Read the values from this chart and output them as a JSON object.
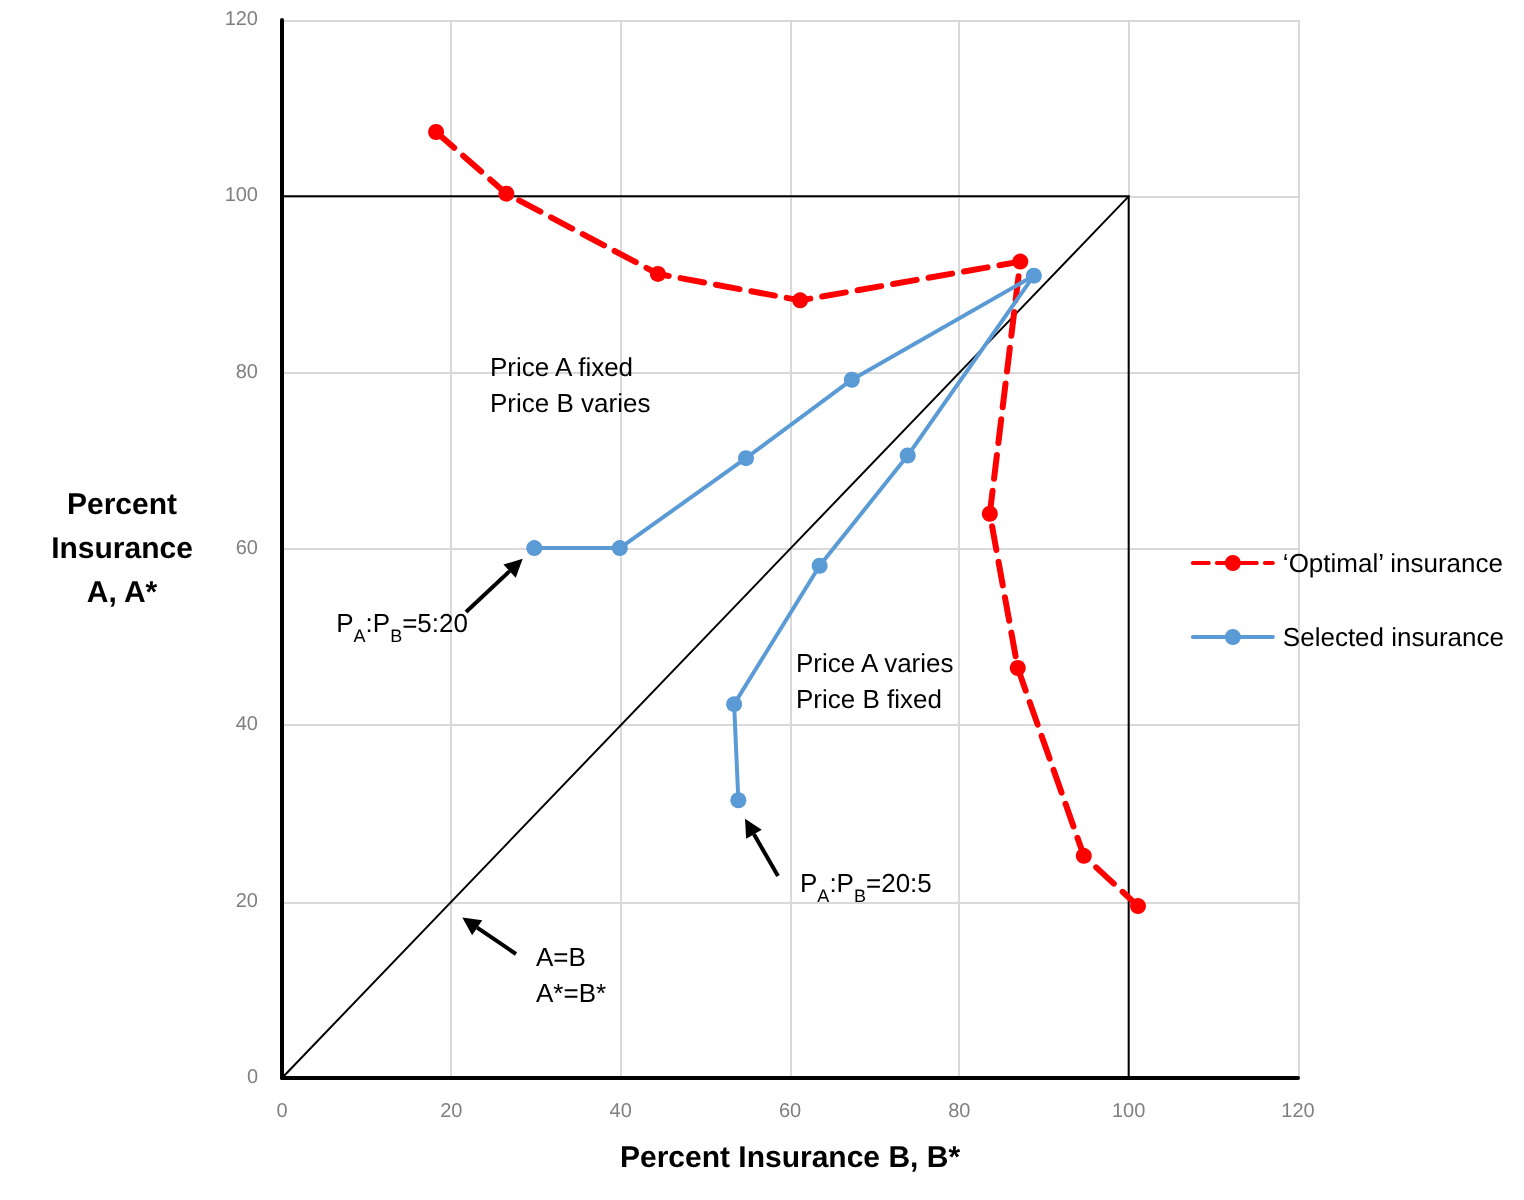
{
  "chart_data": {
    "type": "line",
    "xlabel": "Percent Insurance B, B*",
    "ylabel": "Percent\nInsurance\nA, A*",
    "xlim": [
      0,
      120
    ],
    "xticks": [
      0,
      20,
      40,
      60,
      80,
      100,
      120
    ],
    "ylim": [
      0,
      120
    ],
    "yticks": [
      0,
      20,
      40,
      60,
      80,
      100,
      120
    ],
    "grid": true,
    "legend": "right",
    "series": [
      {
        "name": "‘Optimal’ insurance",
        "color": "#ff0000",
        "marker": "circle",
        "line_style": "dashed",
        "x": [
          18.2,
          26.5,
          44.4,
          61.2,
          87.2,
          83.6,
          86.9,
          94.7,
          101.1
        ],
        "values": [
          107.3,
          100.3,
          91.2,
          88.2,
          92.6,
          64.0,
          46.5,
          25.2,
          19.5
        ]
      },
      {
        "name": "Selected insurance",
        "color": "#5b9bd5",
        "marker": "circle",
        "line_style": "solid",
        "x": [
          29.8,
          39.9,
          54.8,
          67.3,
          88.8,
          73.9,
          63.5,
          53.4,
          53.9
        ],
        "values": [
          60.1,
          60.1,
          70.3,
          79.2,
          91.0,
          70.6,
          58.1,
          42.4,
          31.5
        ]
      },
      {
        "color": "#000000",
        "marker": "none",
        "line_style": "solid",
        "x": [
          0,
          100
        ],
        "values": [
          0,
          100
        ]
      },
      {
        "color": "#000000",
        "marker": "none",
        "line_style": "solid",
        "x": [
          0,
          100,
          100
        ],
        "values": [
          100,
          100,
          0
        ]
      }
    ],
    "annotations": [
      "Price A fixed\nPrice B varies",
      "Price A varies\nPrice B fixed",
      "P$_{A}$:P$_{B}$=5:20",
      "P$_{A}$:P$_{B}$=20:5",
      "A=B\nA*=B*"
    ]
  }
}
